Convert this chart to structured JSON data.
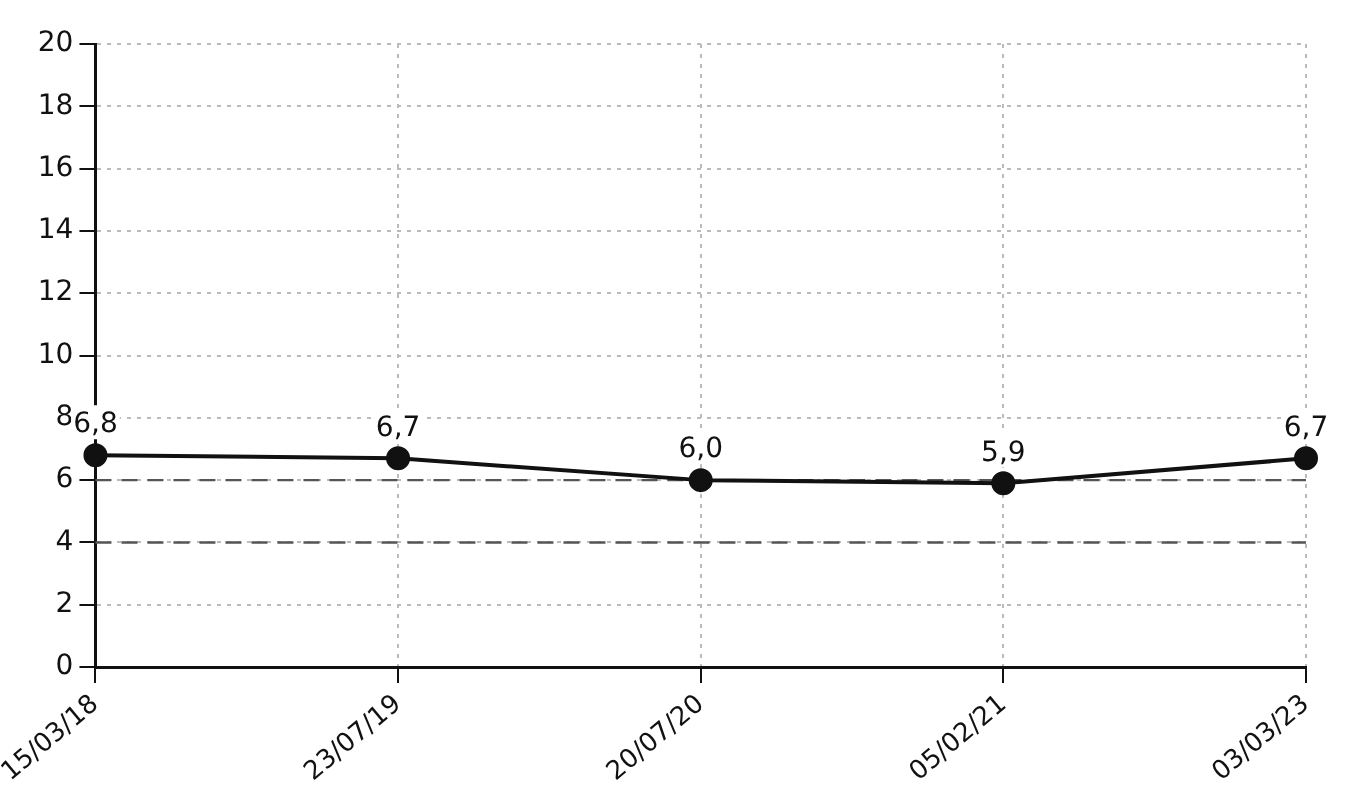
{
  "chart_data": {
    "type": "line",
    "categories": [
      "15/03/18",
      "23/07/19",
      "20/07/20",
      "05/02/21",
      "03/03/23"
    ],
    "series": [
      {
        "color": "#111111",
        "values": [
          6.8,
          6.7,
          6.0,
          5.9,
          6.7
        ],
        "value_labels": [
          "6,8",
          "6,7",
          "6,0",
          "5,9",
          "6,7"
        ]
      }
    ],
    "ylim": [
      0,
      20
    ],
    "yticks": [
      0,
      2,
      4,
      6,
      8,
      10,
      12,
      14,
      16,
      18,
      20
    ],
    "grid": true,
    "legend": false,
    "marker": "circle",
    "line_style": "solid",
    "ref_lines": [
      {
        "axis": "y",
        "value": 6,
        "color": "#555555",
        "line_style": "dashed"
      },
      {
        "axis": "y",
        "value": 4,
        "color": "#555555",
        "line_style": "dashed"
      }
    ]
  }
}
